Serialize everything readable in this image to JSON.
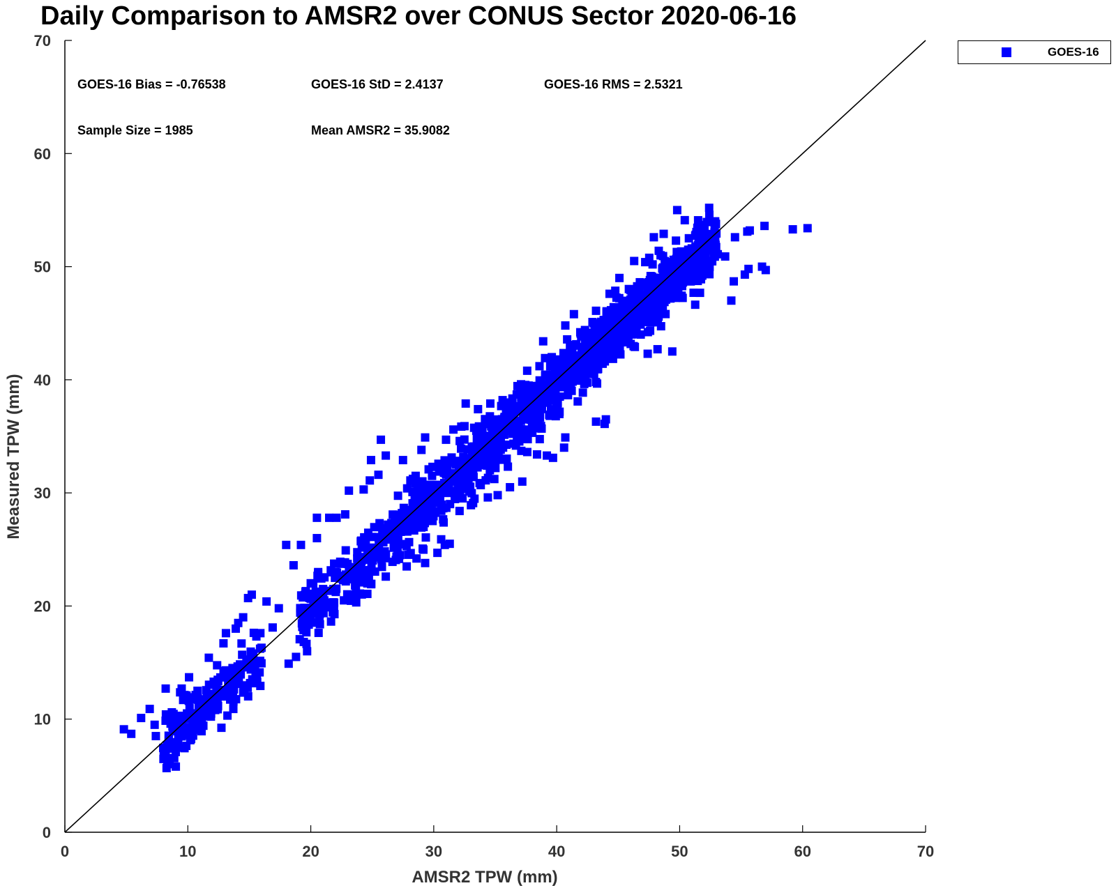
{
  "chart_data": {
    "type": "scatter",
    "title": "Daily Comparison to AMSR2 over CONUS Sector 2020-06-16",
    "xlabel": "AMSR2 TPW (mm)",
    "ylabel": "Measured TPW (mm)",
    "xlim": [
      0,
      70
    ],
    "ylim": [
      0,
      70
    ],
    "xticks": [
      0,
      10,
      20,
      30,
      40,
      50,
      60,
      70
    ],
    "yticks": [
      0,
      10,
      20,
      30,
      40,
      50,
      60,
      70
    ],
    "grid": false,
    "reference_line": {
      "type": "one-to-one",
      "from": [
        0,
        0
      ],
      "to": [
        70,
        70
      ],
      "color": "#000000"
    },
    "legend": {
      "placement": "outside-top-right",
      "entries": [
        "GOES-16"
      ]
    },
    "annotations": {
      "bias": "GOES-16 Bias = -0.76538",
      "std": "GOES-16 StD = 2.4137",
      "rms": "GOES-16 RMS = 2.5321",
      "sample_size": "Sample Size = 1985",
      "mean": "Mean AMSR2 = 35.9082"
    },
    "series": [
      {
        "name": "GOES-16",
        "marker": "square",
        "color": "#0000ff",
        "cloud": {
          "n_rendered": 1600,
          "x_range": [
            8,
            53
          ],
          "bias": -0.76538,
          "std": 2.4137,
          "seed": 20200616
        },
        "points": [
          [
            4.8,
            9.1
          ],
          [
            5.4,
            8.7
          ],
          [
            6.2,
            10.1
          ],
          [
            6.9,
            10.9
          ],
          [
            7.3,
            9.5
          ],
          [
            7.4,
            8.5
          ],
          [
            8.3,
            7.7
          ],
          [
            9.2,
            7.7
          ],
          [
            8.2,
            12.7
          ],
          [
            9.5,
            12.7
          ],
          [
            10.1,
            13.7
          ],
          [
            13.7,
            10.9
          ],
          [
            12.9,
            16.7
          ],
          [
            13.1,
            17.6
          ],
          [
            13.9,
            18.0
          ],
          [
            14.1,
            18.5
          ],
          [
            14.5,
            19.0
          ],
          [
            14.9,
            20.7
          ],
          [
            15.2,
            21.0
          ],
          [
            16.4,
            20.4
          ],
          [
            17.4,
            19.8
          ],
          [
            18.2,
            14.9
          ],
          [
            18.8,
            15.5
          ],
          [
            19.7,
            16.0
          ],
          [
            18.6,
            23.6
          ],
          [
            18.0,
            25.4
          ],
          [
            19.2,
            25.4
          ],
          [
            20.5,
            26.0
          ],
          [
            20.5,
            27.8
          ],
          [
            21.5,
            27.8
          ],
          [
            22.1,
            27.8
          ],
          [
            22.8,
            28.1
          ],
          [
            23.1,
            30.2
          ],
          [
            24.3,
            30.3
          ],
          [
            24.8,
            31.1
          ],
          [
            25.5,
            31.6
          ],
          [
            24.9,
            32.9
          ],
          [
            25.7,
            34.7
          ],
          [
            26.1,
            33.3
          ],
          [
            27.5,
            32.9
          ],
          [
            29.0,
            33.8
          ],
          [
            28.1,
            31.1
          ],
          [
            29.3,
            34.9
          ],
          [
            31.0,
            34.7
          ],
          [
            31.6,
            35.6
          ],
          [
            32.5,
            35.9
          ],
          [
            32.6,
            37.9
          ],
          [
            33.6,
            37.4
          ],
          [
            34.6,
            37.9
          ],
          [
            35.6,
            38.2
          ],
          [
            36.4,
            37.4
          ],
          [
            37.1,
            39.6
          ],
          [
            37.6,
            40.8
          ],
          [
            38.6,
            41.2
          ],
          [
            39.6,
            42.0
          ],
          [
            38.9,
            43.4
          ],
          [
            40.7,
            44.8
          ],
          [
            41.4,
            45.8
          ],
          [
            43.2,
            46.1
          ],
          [
            44.3,
            47.6
          ],
          [
            45.1,
            49.0
          ],
          [
            46.3,
            50.5
          ],
          [
            47.2,
            50.4
          ],
          [
            47.8,
            50.2
          ],
          [
            48.3,
            51.4
          ],
          [
            47.9,
            52.6
          ],
          [
            48.7,
            52.9
          ],
          [
            49.7,
            52.3
          ],
          [
            51.5,
            54.1
          ],
          [
            49.8,
            55.0
          ],
          [
            52.0,
            52.1
          ],
          [
            52.6,
            52.6
          ],
          [
            52.1,
            50.9
          ],
          [
            53.1,
            51.1
          ],
          [
            53.7,
            50.9
          ],
          [
            54.5,
            52.6
          ],
          [
            55.5,
            53.1
          ],
          [
            55.7,
            53.2
          ],
          [
            54.4,
            48.7
          ],
          [
            55.3,
            49.3
          ],
          [
            55.6,
            49.8
          ],
          [
            56.7,
            50.0
          ],
          [
            57.0,
            49.7
          ],
          [
            56.9,
            53.6
          ],
          [
            59.2,
            53.3
          ],
          [
            60.4,
            53.4
          ],
          [
            54.2,
            47.0
          ],
          [
            49.4,
            42.5
          ],
          [
            48.2,
            42.7
          ],
          [
            47.4,
            42.3
          ],
          [
            44.0,
            36.5
          ],
          [
            43.2,
            36.3
          ],
          [
            43.9,
            36.1
          ],
          [
            40.7,
            34.9
          ],
          [
            40.6,
            34.0
          ],
          [
            39.7,
            33.1
          ],
          [
            39.2,
            33.3
          ],
          [
            38.4,
            33.4
          ],
          [
            37.2,
            31.0
          ],
          [
            36.2,
            30.5
          ],
          [
            35.2,
            29.8
          ],
          [
            34.4,
            29.6
          ],
          [
            33.2,
            29.1
          ],
          [
            32.1,
            28.4
          ],
          [
            31.3,
            25.5
          ],
          [
            30.9,
            25.4
          ],
          [
            30.3,
            24.7
          ],
          [
            29.3,
            23.8
          ],
          [
            28.6,
            24.2
          ],
          [
            27.8,
            23.5
          ],
          [
            26.1,
            22.6
          ],
          [
            24.6,
            22.0
          ],
          [
            24.0,
            21.1
          ],
          [
            23.6,
            20.8
          ],
          [
            22.7,
            20.5
          ],
          [
            21.9,
            20.3
          ],
          [
            21.1,
            20.5
          ],
          [
            21.0,
            21.5
          ],
          [
            20.2,
            22.0
          ],
          [
            20.6,
            23.0
          ],
          [
            16.9,
            18.1
          ],
          [
            15.9,
            17.6
          ],
          [
            15.1,
            15.2
          ],
          [
            14.3,
            14.3
          ],
          [
            13.6,
            13.0
          ],
          [
            12.8,
            12.0
          ],
          [
            11.8,
            11.0
          ],
          [
            10.8,
            10.1
          ],
          [
            9.9,
            9.3
          ],
          [
            9.2,
            9.0
          ],
          [
            8.6,
            9.6
          ],
          [
            8.7,
            10.6
          ]
        ]
      }
    ]
  }
}
